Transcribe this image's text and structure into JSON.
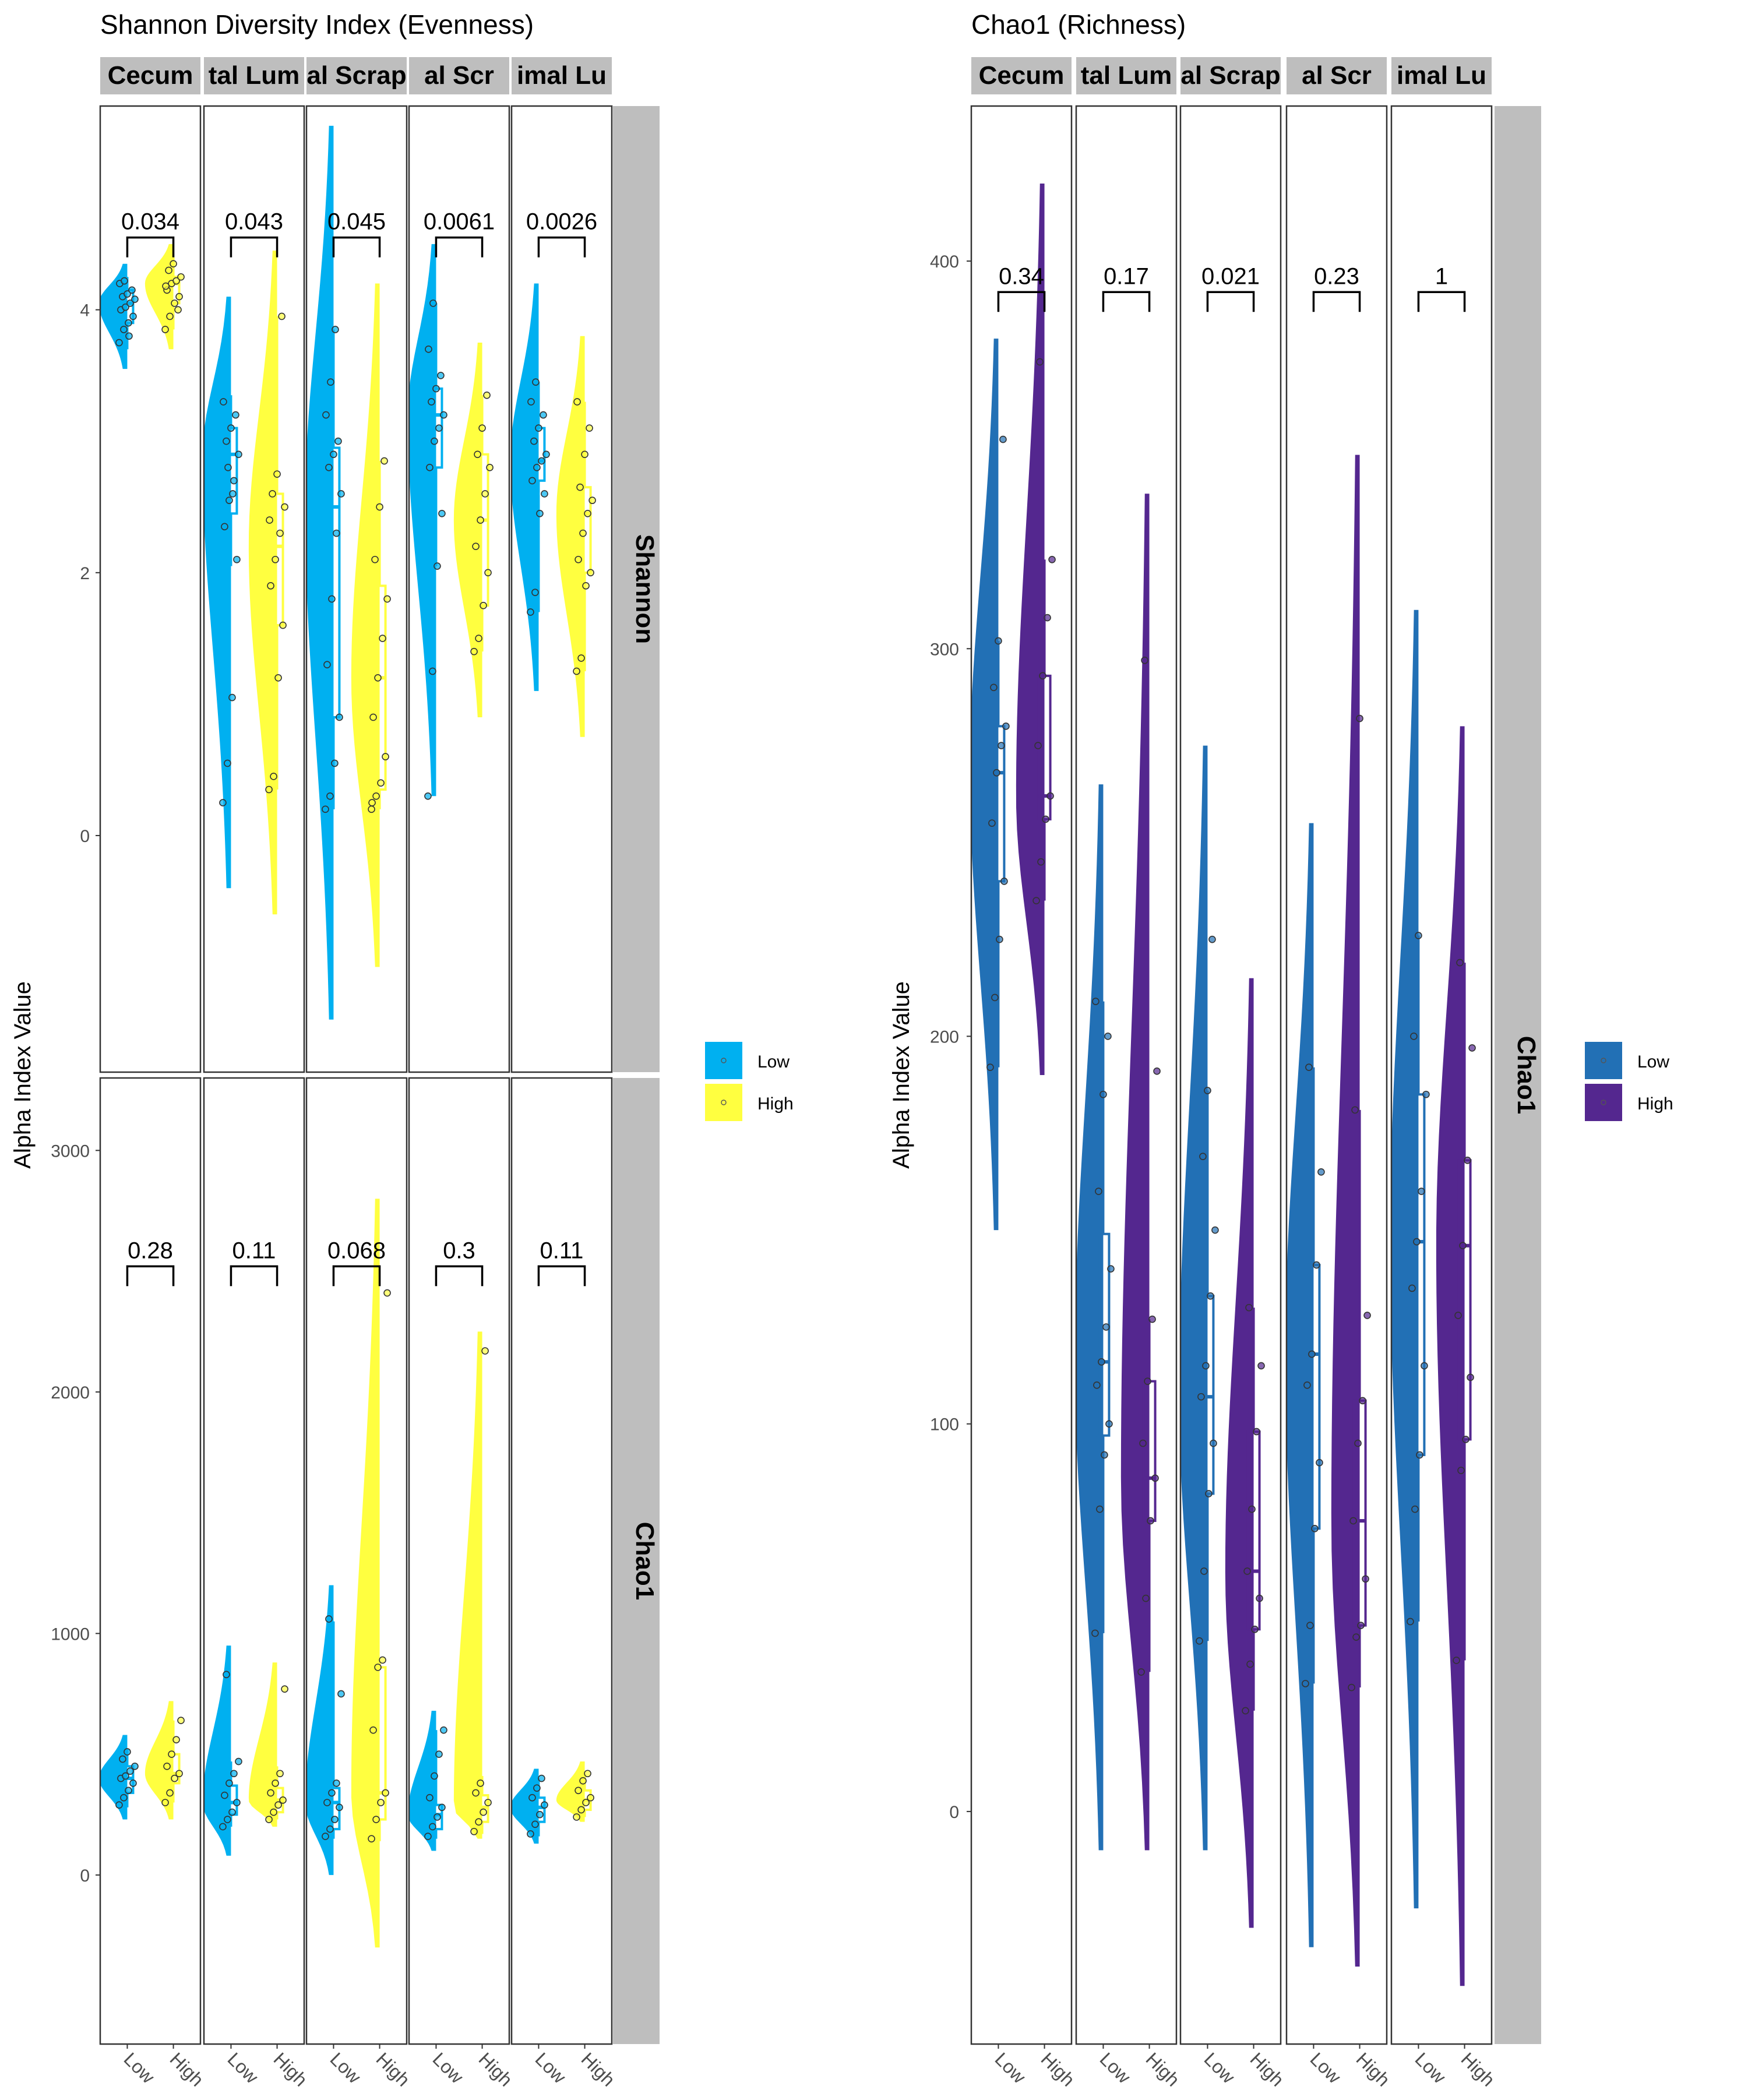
{
  "colors": {
    "left_low": "#00B0F0",
    "left_high": "#FFFF40",
    "right_low": "#2270B5",
    "right_high": "#54278F",
    "strip": "#BEBEBE",
    "panel_border": "#333333"
  },
  "chart_data": [
    {
      "id": "left",
      "type": "raincloud",
      "title": "Shannon Diversity Index (Evenness)",
      "ylabel": "Alpha Index Value",
      "column_strips": [
        "Cecum",
        "tal Lum",
        "al Scrap",
        "al Scr",
        "imal Lu"
      ],
      "x_categories": [
        "Low",
        "High"
      ],
      "legend": {
        "placement": "right",
        "entries": [
          "Low",
          "High"
        ]
      },
      "grid": false,
      "rows": [
        {
          "strip": "Shannon",
          "ylim": [
            -1.8,
            5.55
          ],
          "yticks": [
            0,
            2,
            4
          ],
          "bracket_y": 4.55,
          "pvalues": [
            "0.034",
            "0.043",
            "0.045",
            "0.0061",
            "0.0026"
          ],
          "panels": [
            {
              "low": {
                "q1": 3.9,
                "median": 4.05,
                "q3": 4.15,
                "wlo": 3.7,
                "whi": 4.25,
                "dmin": 3.55,
                "dmax": 4.35,
                "points": [
                  3.75,
                  3.85,
                  3.9,
                  3.95,
                  4.0,
                  4.02,
                  4.05,
                  4.08,
                  4.1,
                  4.12,
                  4.15,
                  4.2,
                  4.22,
                  3.8
                ]
              },
              "high": {
                "q1": 4.05,
                "median": 4.2,
                "q3": 4.25,
                "wlo": 3.85,
                "whi": 4.4,
                "dmin": 3.7,
                "dmax": 4.5,
                "points": [
                  3.85,
                  3.95,
                  4.05,
                  4.1,
                  4.15,
                  4.2,
                  4.22,
                  4.25,
                  4.3,
                  4.35,
                  4.0,
                  4.18
                ]
              }
            },
            {
              "low": {
                "q1": 2.45,
                "median": 2.9,
                "q3": 3.1,
                "wlo": 2.05,
                "whi": 3.35,
                "dmin": -0.4,
                "dmax": 4.1,
                "points": [
                  0.25,
                  0.55,
                  1.05,
                  2.1,
                  2.35,
                  2.55,
                  2.7,
                  2.9,
                  3.0,
                  3.1,
                  3.2,
                  3.3,
                  2.8,
                  2.6
                ]
              },
              "high": {
                "q1": 1.6,
                "median": 2.2,
                "q3": 2.6,
                "wlo": 0.35,
                "whi": 3.95,
                "dmin": -0.6,
                "dmax": 4.45,
                "points": [
                  0.35,
                  0.45,
                  1.2,
                  1.6,
                  1.9,
                  2.1,
                  2.3,
                  2.5,
                  2.6,
                  2.75,
                  3.95,
                  2.4
                ]
              }
            },
            {
              "low": {
                "q1": 0.9,
                "median": 2.5,
                "q3": 2.95,
                "wlo": 0.2,
                "whi": 3.85,
                "dmin": -1.4,
                "dmax": 5.4,
                "points": [
                  0.2,
                  0.3,
                  0.55,
                  0.9,
                  1.3,
                  1.8,
                  2.3,
                  2.6,
                  2.8,
                  2.9,
                  3.0,
                  3.2,
                  3.45,
                  3.85
                ]
              },
              "high": {
                "q1": 0.35,
                "median": 1.2,
                "q3": 1.9,
                "wlo": 0.2,
                "whi": 2.85,
                "dmin": -1.0,
                "dmax": 4.2,
                "points": [
                  0.2,
                  0.3,
                  0.4,
                  0.6,
                  0.9,
                  1.2,
                  1.5,
                  1.8,
                  2.1,
                  2.5,
                  2.85,
                  0.25
                ]
              }
            },
            {
              "low": {
                "q1": 2.8,
                "median": 3.2,
                "q3": 3.4,
                "wlo": 2.05,
                "whi": 4.05,
                "dmin": 0.3,
                "dmax": 4.5,
                "points": [
                  0.3,
                  1.25,
                  2.05,
                  2.45,
                  2.8,
                  3.0,
                  3.1,
                  3.2,
                  3.3,
                  3.4,
                  3.5,
                  3.7,
                  4.05
                ]
              },
              "high": {
                "q1": 1.75,
                "median": 2.4,
                "q3": 2.9,
                "wlo": 1.4,
                "whi": 3.35,
                "dmin": 0.9,
                "dmax": 3.75,
                "points": [
                  1.4,
                  1.5,
                  1.75,
                  2.0,
                  2.2,
                  2.4,
                  2.6,
                  2.8,
                  2.9,
                  3.1,
                  3.35
                ]
              }
            },
            {
              "low": {
                "q1": 2.7,
                "median": 2.85,
                "q3": 3.1,
                "wlo": 1.7,
                "whi": 3.45,
                "dmin": 1.1,
                "dmax": 4.2,
                "points": [
                  1.7,
                  1.85,
                  2.45,
                  2.6,
                  2.7,
                  2.8,
                  2.85,
                  2.9,
                  3.0,
                  3.1,
                  3.2,
                  3.3,
                  3.45
                ]
              },
              "high": {
                "q1": 2.0,
                "median": 2.45,
                "q3": 2.65,
                "wlo": 1.25,
                "whi": 3.3,
                "dmin": 0.75,
                "dmax": 3.8,
                "points": [
                  1.25,
                  1.35,
                  1.9,
                  2.0,
                  2.1,
                  2.3,
                  2.45,
                  2.55,
                  2.65,
                  2.9,
                  3.1,
                  3.3
                ]
              }
            }
          ]
        },
        {
          "strip": "Chao1",
          "ylim": [
            -700,
            3300
          ],
          "yticks": [
            0,
            1000,
            2000,
            3000
          ],
          "bracket_y": 2520,
          "pvalues": [
            "0.28",
            "0.11",
            "0.068",
            "0.3",
            "0.11"
          ],
          "panels": [
            {
              "low": {
                "q1": 340,
                "median": 400,
                "q3": 450,
                "wlo": 280,
                "whi": 520,
                "dmin": 230,
                "dmax": 580,
                "points": [
                  290,
                  320,
                  350,
                  380,
                  400,
                  410,
                  430,
                  450,
                  480,
                  510
                ]
              },
              "high": {
                "q1": 380,
                "median": 420,
                "q3": 500,
                "wlo": 300,
                "whi": 640,
                "dmin": 230,
                "dmax": 720,
                "points": [
                  300,
                  340,
                  400,
                  420,
                  450,
                  500,
                  560,
                  640
                ]
              }
            },
            {
              "low": {
                "q1": 250,
                "median": 300,
                "q3": 370,
                "wlo": 200,
                "whi": 470,
                "dmin": 80,
                "dmax": 950,
                "points": [
                  200,
                  230,
                  260,
                  300,
                  330,
                  380,
                  420,
                  470,
                  830
                ]
              },
              "high": {
                "q1": 260,
                "median": 310,
                "q3": 360,
                "wlo": 230,
                "whi": 450,
                "dmin": 200,
                "dmax": 880,
                "points": [
                  230,
                  260,
                  290,
                  310,
                  340,
                  380,
                  420,
                  770
                ]
              }
            },
            {
              "low": {
                "q1": 190,
                "median": 300,
                "q3": 360,
                "wlo": 150,
                "whi": 1050,
                "dmin": 0,
                "dmax": 1200,
                "points": [
                  160,
                  190,
                  230,
                  280,
                  300,
                  340,
                  380,
                  750,
                  1060
                ]
              },
              "high": {
                "q1": 230,
                "median": 340,
                "q3": 860,
                "wlo": 140,
                "whi": 890,
                "dmin": -300,
                "dmax": 2800,
                "points": [
                  150,
                  230,
                  300,
                  340,
                  600,
                  860,
                  890,
                  2410
                ]
              }
            },
            {
              "low": {
                "q1": 190,
                "median": 250,
                "q3": 290,
                "wlo": 150,
                "whi": 600,
                "dmin": 100,
                "dmax": 680,
                "points": [
                  160,
                  200,
                  240,
                  280,
                  320,
                  410,
                  500,
                  600
                ]
              },
              "high": {
                "q1": 220,
                "median": 280,
                "q3": 330,
                "wlo": 170,
                "whi": 410,
                "dmin": 150,
                "dmax": 2250,
                "points": [
                  180,
                  220,
                  260,
                  300,
                  340,
                  380,
                  2170
                ]
              }
            },
            {
              "low": {
                "q1": 220,
                "median": 280,
                "q3": 320,
                "wlo": 160,
                "whi": 400,
                "dmin": 130,
                "dmax": 440,
                "points": [
                  170,
                  210,
                  250,
                  290,
                  320,
                  360,
                  400
                ]
              },
              "high": {
                "q1": 270,
                "median": 310,
                "q3": 350,
                "wlo": 240,
                "whi": 420,
                "dmin": 220,
                "dmax": 470,
                "points": [
                  240,
                  270,
                  300,
                  320,
                  350,
                  390,
                  420
                ]
              }
            }
          ]
        }
      ]
    },
    {
      "id": "right",
      "type": "raincloud",
      "title": "Chao1 (Richness)",
      "ylabel": "Alpha Index Value",
      "column_strips": [
        "Cecum",
        "tal Lum",
        "al Scrap",
        "al Scr",
        "imal Lu"
      ],
      "x_categories": [
        "Low",
        "High"
      ],
      "legend": {
        "placement": "right",
        "entries": [
          "Low",
          "High"
        ]
      },
      "grid": false,
      "rows": [
        {
          "strip": "Chao1",
          "ylim": [
            -60,
            440
          ],
          "yticks": [
            0,
            100,
            200,
            300,
            400
          ],
          "bracket_y": 392,
          "pvalues": [
            "0.34",
            "0.17",
            "0.021",
            "0.23",
            "1"
          ],
          "panels": [
            {
              "low": {
                "q1": 240,
                "median": 268,
                "q3": 280,
                "wlo": 192,
                "whi": 302,
                "dmin": 150,
                "dmax": 380,
                "points": [
                  192,
                  210,
                  225,
                  240,
                  255,
                  268,
                  275,
                  280,
                  290,
                  302,
                  354
                ]
              },
              "high": {
                "q1": 256,
                "median": 262,
                "q3": 293,
                "wlo": 235,
                "whi": 323,
                "dmin": 190,
                "dmax": 420,
                "points": [
                  235,
                  245,
                  256,
                  262,
                  275,
                  293,
                  308,
                  323,
                  374
                ]
              }
            },
            {
              "low": {
                "q1": 97,
                "median": 116,
                "q3": 149,
                "wlo": 46,
                "whi": 209,
                "dmin": -10,
                "dmax": 265,
                "points": [
                  46,
                  78,
                  92,
                  100,
                  110,
                  116,
                  125,
                  140,
                  160,
                  185,
                  200,
                  209
                ]
              },
              "high": {
                "q1": 75,
                "median": 86,
                "q3": 111,
                "wlo": 36,
                "whi": 127,
                "dmin": -10,
                "dmax": 340,
                "points": [
                  36,
                  55,
                  75,
                  86,
                  95,
                  111,
                  127,
                  191,
                  297
                ]
              }
            },
            {
              "low": {
                "q1": 82,
                "median": 107,
                "q3": 133,
                "wlo": 44,
                "whi": 186,
                "dmin": -10,
                "dmax": 275,
                "points": [
                  44,
                  62,
                  82,
                  95,
                  107,
                  115,
                  133,
                  150,
                  169,
                  186,
                  225
                ]
              },
              "high": {
                "q1": 47,
                "median": 62,
                "q3": 98,
                "wlo": 26,
                "whi": 130,
                "dmin": -30,
                "dmax": 215,
                "points": [
                  26,
                  38,
                  47,
                  55,
                  62,
                  78,
                  98,
                  115,
                  130
                ]
              }
            },
            {
              "low": {
                "q1": 73,
                "median": 118,
                "q3": 141,
                "wlo": 33,
                "whi": 192,
                "dmin": -35,
                "dmax": 255,
                "points": [
                  33,
                  48,
                  73,
                  90,
                  110,
                  118,
                  141,
                  165,
                  192
                ]
              },
              "high": {
                "q1": 48,
                "median": 75,
                "q3": 106,
                "wlo": 32,
                "whi": 181,
                "dmin": -40,
                "dmax": 350,
                "points": [
                  32,
                  45,
                  48,
                  60,
                  75,
                  95,
                  106,
                  128,
                  181,
                  282
                ]
              }
            },
            {
              "low": {
                "q1": 92,
                "median": 147,
                "q3": 185,
                "wlo": 49,
                "whi": 226,
                "dmin": -25,
                "dmax": 310,
                "points": [
                  49,
                  78,
                  92,
                  115,
                  135,
                  147,
                  160,
                  185,
                  200,
                  226
                ]
              },
              "high": {
                "q1": 96,
                "median": 146,
                "q3": 168,
                "wlo": 39,
                "whi": 219,
                "dmin": -45,
                "dmax": 280,
                "points": [
                  39,
                  88,
                  96,
                  112,
                  128,
                  146,
                  168,
                  197,
                  219
                ]
              }
            }
          ]
        }
      ]
    }
  ]
}
